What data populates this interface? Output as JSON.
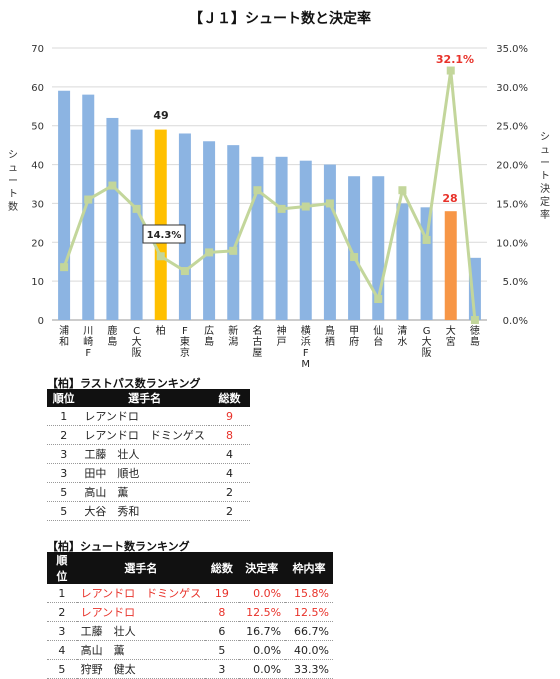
{
  "chart_data": {
    "type": "bar",
    "title": "【Ｊ１】シュート数と決定率",
    "categories": [
      [
        "浦",
        "和"
      ],
      [
        "川",
        "崎",
        "F"
      ],
      [
        "鹿",
        "島"
      ],
      [
        "C",
        "大",
        "阪"
      ],
      [
        "柏"
      ],
      [
        "F",
        "東",
        "京"
      ],
      [
        "広",
        "島"
      ],
      [
        "新",
        "潟"
      ],
      [
        "名",
        "古",
        "屋"
      ],
      [
        "神",
        "戸"
      ],
      [
        "横",
        "浜",
        "F",
        "M"
      ],
      [
        "鳥",
        "栖"
      ],
      [
        "甲",
        "府"
      ],
      [
        "仙",
        "台"
      ],
      [
        "清",
        "水"
      ],
      [
        "G",
        "大",
        "阪"
      ],
      [
        "大",
        "宮"
      ],
      [
        "徳",
        "島"
      ]
    ],
    "series": [
      {
        "values": [
          59,
          58,
          52,
          49,
          49,
          48,
          46,
          45,
          42,
          42,
          41,
          40,
          37,
          37,
          30,
          29,
          28,
          16
        ]
      },
      {
        "values": [
          6.8,
          15.5,
          17.3,
          14.3,
          8.2,
          6.3,
          8.7,
          8.9,
          16.7,
          14.3,
          14.6,
          15.0,
          8.1,
          2.7,
          16.7,
          10.3,
          32.1,
          0.0
        ]
      }
    ],
    "ylabel": "シュート数",
    "y2label": "シュート決定率",
    "ylim": [
      0,
      70
    ],
    "y2lim": [
      0,
      35
    ],
    "yticks": [
      "0",
      "10",
      "20",
      "30",
      "40",
      "50",
      "60",
      "70"
    ],
    "y2ticks": [
      "0.0%",
      "5.0%",
      "10.0%",
      "15.0%",
      "20.0%",
      "25.0%",
      "30.0%",
      "35.0%"
    ],
    "annotations": [
      "49",
      "14.3%",
      "32.1%",
      "28"
    ],
    "grid": true,
    "legend": "none",
    "colors": {
      "bar": "#8cb4e2",
      "bar_highlight_kashiwa": "#ffc000",
      "bar_highlight_omiya": "#f79646",
      "line": "#c3d69b",
      "annotation_red": "#e8322a"
    }
  },
  "pass_ranking": {
    "title": "【柏】ラストパス数ランキング",
    "headers": [
      "順位",
      "選手名",
      "総数"
    ],
    "rows": [
      [
        "1",
        "レアンドロ",
        "9"
      ],
      [
        "2",
        "レアンドロ　ドミンゲス",
        "8"
      ],
      [
        "3",
        "工藤　壮人",
        "4"
      ],
      [
        "3",
        "田中　順也",
        "4"
      ],
      [
        "5",
        "高山　薫",
        "2"
      ],
      [
        "5",
        "大谷　秀和",
        "2"
      ]
    ]
  },
  "shot_ranking": {
    "title": "【柏】シュート数ランキング",
    "headers": [
      "順位",
      "選手名",
      "総数",
      "決定率",
      "枠内率"
    ],
    "rows": [
      [
        "1",
        "レアンドロ　ドミンゲス",
        "19",
        "0.0%",
        "15.8%"
      ],
      [
        "2",
        "レアンドロ",
        "8",
        "12.5%",
        "12.5%"
      ],
      [
        "3",
        "工藤　壮人",
        "6",
        "16.7%",
        "66.7%"
      ],
      [
        "4",
        "高山　薫",
        "5",
        "0.0%",
        "40.0%"
      ],
      [
        "5",
        "狩野　健太",
        "3",
        "0.0%",
        "33.3%"
      ]
    ]
  }
}
